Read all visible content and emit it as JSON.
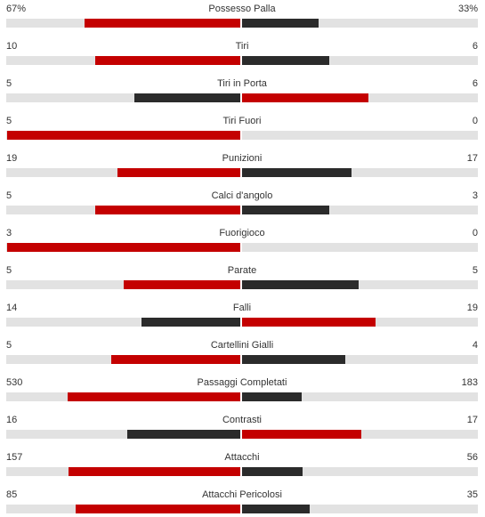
{
  "colors": {
    "leading": "#c40000",
    "trailing": "#2b2b2b",
    "track": "#e2e2e2"
  },
  "stats": [
    {
      "label": "Possesso Palla",
      "home": "67%",
      "away": "33%",
      "home_value": 67,
      "away_value": 33
    },
    {
      "label": "Tiri",
      "home": "10",
      "away": "6",
      "home_value": 10,
      "away_value": 6
    },
    {
      "label": "Tiri in Porta",
      "home": "5",
      "away": "6",
      "home_value": 5,
      "away_value": 6
    },
    {
      "label": "Tiri Fuori",
      "home": "5",
      "away": "0",
      "home_value": 5,
      "away_value": 0
    },
    {
      "label": "Punizioni",
      "home": "19",
      "away": "17",
      "home_value": 19,
      "away_value": 17
    },
    {
      "label": "Calci d'angolo",
      "home": "5",
      "away": "3",
      "home_value": 5,
      "away_value": 3
    },
    {
      "label": "Fuorigioco",
      "home": "3",
      "away": "0",
      "home_value": 3,
      "away_value": 0
    },
    {
      "label": "Parate",
      "home": "5",
      "away": "5",
      "home_value": 5,
      "away_value": 5
    },
    {
      "label": "Falli",
      "home": "14",
      "away": "19",
      "home_value": 14,
      "away_value": 19
    },
    {
      "label": "Cartellini Gialli",
      "home": "5",
      "away": "4",
      "home_value": 5,
      "away_value": 4
    },
    {
      "label": "Passaggi Completati",
      "home": "530",
      "away": "183",
      "home_value": 530,
      "away_value": 183
    },
    {
      "label": "Contrasti",
      "home": "16",
      "away": "17",
      "home_value": 16,
      "away_value": 17
    },
    {
      "label": "Attacchi",
      "home": "157",
      "away": "56",
      "home_value": 157,
      "away_value": 56
    },
    {
      "label": "Attacchi Pericolosi",
      "home": "85",
      "away": "35",
      "home_value": 85,
      "away_value": 35
    }
  ]
}
